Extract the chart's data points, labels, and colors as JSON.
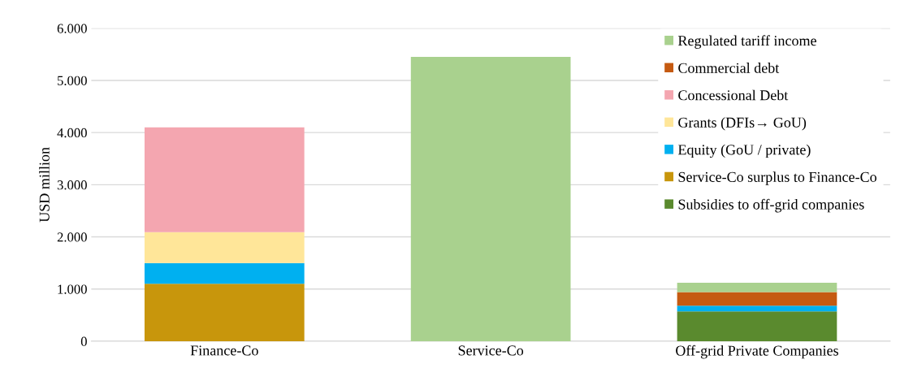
{
  "chart_data": {
    "type": "bar",
    "stacked": true,
    "ylabel": "USD million",
    "categories": [
      "Finance-Co",
      "Service-Co",
      "Off-grid Private Companies"
    ],
    "series": [
      {
        "name": "Subsidies to off-grid companies",
        "color": "#5a8a2e",
        "values": [
          null,
          null,
          570
        ]
      },
      {
        "name": "Service-Co surplus to Finance-Co",
        "color": "#c8960c",
        "values": [
          1100,
          null,
          null
        ]
      },
      {
        "name": "Equity (GoU / private)",
        "color": "#00b0f0",
        "values": [
          400,
          null,
          110
        ]
      },
      {
        "name": "Grants (DFIs→ GoU)",
        "color": "#ffe699",
        "values": [
          590,
          null,
          null
        ]
      },
      {
        "name": "Concessional Debt",
        "color": "#f4a6b0",
        "values": [
          2010,
          null,
          null
        ]
      },
      {
        "name": "Commercial debt",
        "color": "#c55a11",
        "values": [
          null,
          null,
          260
        ]
      },
      {
        "name": "Regulated tariff income",
        "color": "#a9d18e",
        "values": [
          null,
          5450,
          180
        ]
      }
    ],
    "ylim": [
      0,
      6000
    ],
    "yticks": [
      0,
      {
        "value": 1000,
        "label": "1.000"
      },
      {
        "value": 2000,
        "label": "2.000"
      },
      {
        "value": 3000,
        "label": "3.000"
      },
      {
        "value": 4000,
        "label": "4.000"
      },
      {
        "value": 5000,
        "label": "5.000"
      },
      {
        "value": 6000,
        "label": "6.000"
      }
    ],
    "grid": "y",
    "legend": "right"
  }
}
